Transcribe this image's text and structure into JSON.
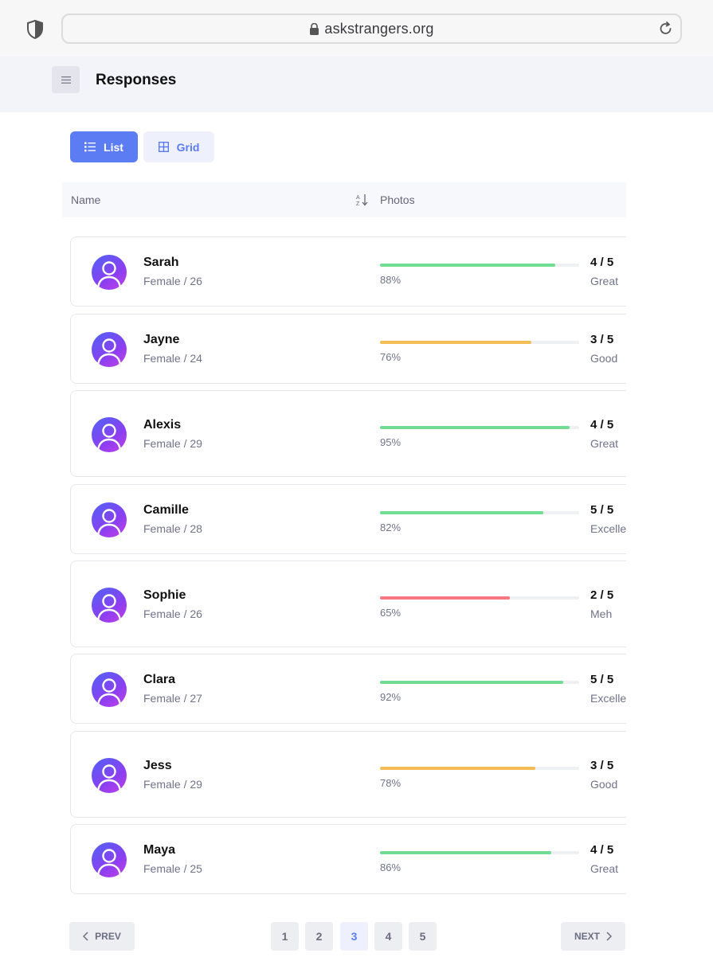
{
  "browser": {
    "url": "askstrangers.org"
  },
  "header": {
    "title": "Responses"
  },
  "view_toggle": {
    "list_label": "List",
    "grid_label": "Grid",
    "active": "List"
  },
  "table": {
    "columns": [
      "Name",
      "Photos"
    ]
  },
  "rows": [
    {
      "name": "Sarah",
      "meta": "Female / 26",
      "percent": 88,
      "percent_label": "88%",
      "score": "4 / 5",
      "rating": "Great",
      "bar_color": "#6fde93"
    },
    {
      "name": "Jayne",
      "meta": "Female / 24",
      "percent": 76,
      "percent_label": "76%",
      "score": "3 / 5",
      "rating": "Good",
      "bar_color": "#f4bc55"
    },
    {
      "name": "Alexis",
      "meta": "Female / 29",
      "percent": 95,
      "percent_label": "95%",
      "score": "4 / 5",
      "rating": "Great",
      "bar_color": "#6fde93"
    },
    {
      "name": "Camille",
      "meta": "Female / 28",
      "percent": 82,
      "percent_label": "82%",
      "score": "5 / 5",
      "rating": "Excellent",
      "bar_color": "#6fde93"
    },
    {
      "name": "Sophie",
      "meta": "Female / 26",
      "percent": 65,
      "percent_label": "65%",
      "score": "2 / 5",
      "rating": "Meh",
      "bar_color": "#f67681"
    },
    {
      "name": "Clara",
      "meta": "Female / 27",
      "percent": 92,
      "percent_label": "92%",
      "score": "5 / 5",
      "rating": "Excellent",
      "bar_color": "#6fde93"
    },
    {
      "name": "Jess",
      "meta": "Female / 29",
      "percent": 78,
      "percent_label": "78%",
      "score": "3 / 5",
      "rating": "Good",
      "bar_color": "#f4bc55"
    },
    {
      "name": "Maya",
      "meta": "Female / 25",
      "percent": 86,
      "percent_label": "86%",
      "score": "4 / 5",
      "rating": "Great",
      "bar_color": "#6fde93"
    }
  ],
  "pagination": {
    "prev_label": "PREV",
    "next_label": "NEXT",
    "pages": [
      "1",
      "2",
      "3",
      "4",
      "5"
    ],
    "current": "3"
  },
  "colors": {
    "accent": "#5b7cf3",
    "great": "#6fde93",
    "good": "#f4bc55",
    "meh": "#f67681"
  },
  "icons": [
    "shield-icon",
    "lock-icon",
    "reload-icon",
    "menu-icon",
    "list-icon",
    "grid-icon",
    "sort-icon",
    "avatar-icon",
    "chevron-left-icon",
    "chevron-right-icon"
  ]
}
